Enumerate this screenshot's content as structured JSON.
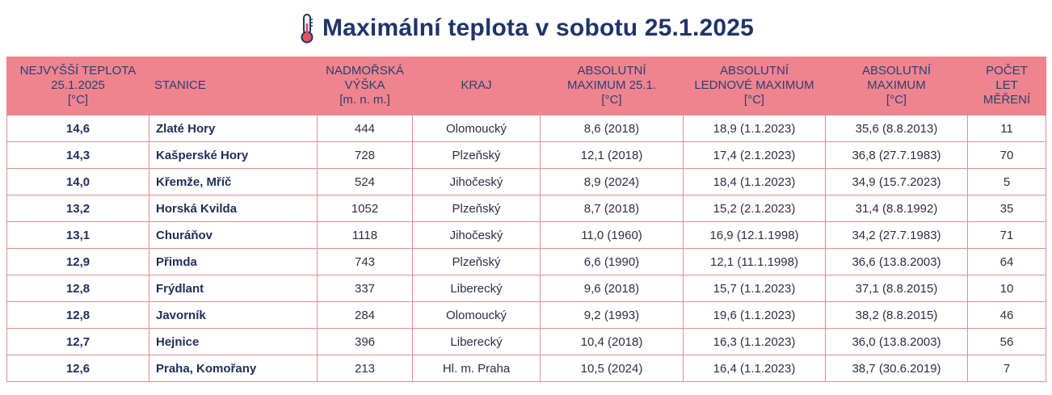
{
  "title": "Maximální teplota v sobotu 25.1.2025",
  "icon": "thermometer-icon",
  "accent_color": "#f0848e",
  "headers": [
    [
      "NEJVYŠŠÍ TEPLOTA",
      "25.1.2025",
      "[°C]"
    ],
    [
      "STANICE"
    ],
    [
      "NADMOŘSKÁ",
      "VÝŠKA",
      "[m. n. m.]"
    ],
    [
      "KRAJ"
    ],
    [
      "ABSOLUTNÍ",
      "MAXIMUM 25.1.",
      "[°C]"
    ],
    [
      "ABSOLUTNÍ",
      "LEDNOVÉ MAXIMUM",
      "[°C]"
    ],
    [
      "ABSOLUTNÍ",
      "MAXIMUM",
      "[°C]"
    ],
    [
      "POČET",
      "LET",
      "MĚŘENÍ"
    ]
  ],
  "rows": [
    [
      "14,6",
      "Zlaté Hory",
      "444",
      "Olomoucký",
      "8,6 (2018)",
      "18,9 (1.1.2023)",
      "35,6 (8.8.2013)",
      "11"
    ],
    [
      "14,3",
      "Kašperské Hory",
      "728",
      "Plzeňský",
      "12,1 (2018)",
      "17,4 (2.1.2023)",
      "36,8 (27.7.1983)",
      "70"
    ],
    [
      "14,0",
      "Křemže, Mříč",
      "524",
      "Jihočeský",
      "8,9 (2024)",
      "18,4 (1.1.2023)",
      "34,9 (15.7.2023)",
      "5"
    ],
    [
      "13,2",
      "Horská Kvilda",
      "1052",
      "Plzeňský",
      "8,7 (2018)",
      "15,2 (2.1.2023)",
      "31,4 (8.8.1992)",
      "35"
    ],
    [
      "13,1",
      "Churáňov",
      "1118",
      "Jihočeský",
      "11,0 (1960)",
      "16,9 (12.1.1998)",
      "34,2 (27.7.1983)",
      "71"
    ],
    [
      "12,9",
      "Přimda",
      "743",
      "Plzeňský",
      "6,6 (1990)",
      "12,1 (11.1.1998)",
      "36,6 (13.8.2003)",
      "64"
    ],
    [
      "12,8",
      "Frýdlant",
      "337",
      "Liberecký",
      "9,6 (2018)",
      "15,7 (1.1.2023)",
      "37,1 (8.8.2015)",
      "10"
    ],
    [
      "12,8",
      "Javorník",
      "284",
      "Olomoucký",
      "9,2 (1993)",
      "19,6 (1.1.2023)",
      "38,2 (8.8.2015)",
      "46"
    ],
    [
      "12,7",
      "Hejnice",
      "396",
      "Liberecký",
      "10,4 (2018)",
      "16,3 (1.1.2023)",
      "36,0 (13.8.2003)",
      "56"
    ],
    [
      "12,6",
      "Praha, Komořany",
      "213",
      "Hl. m. Praha",
      "10,5 (2024)",
      "16,4 (1.1.2023)",
      "38,7 (30.6.2019)",
      "7"
    ]
  ]
}
